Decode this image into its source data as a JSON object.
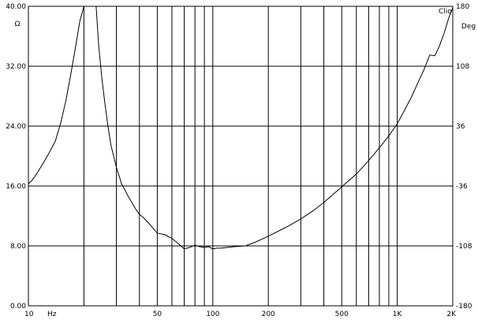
{
  "chart_data": {
    "type": "line",
    "brand": "Clio",
    "x_scale": "log",
    "xlim": [
      10,
      2000
    ],
    "ylim_left": [
      0,
      40
    ],
    "ylim_right": [
      -180,
      180
    ],
    "y_unit_left": "Ω",
    "y_unit_right": "Deg",
    "x_unit": "Hz",
    "grid": true,
    "x_tick_labels": [
      {
        "value": 10,
        "label": "10"
      },
      {
        "value": 50,
        "label": "50"
      },
      {
        "value": 100,
        "label": "100"
      },
      {
        "value": 200,
        "label": "200"
      },
      {
        "value": 500,
        "label": "500"
      },
      {
        "value": 1000,
        "label": "1K"
      },
      {
        "value": 2000,
        "label": "2K"
      }
    ],
    "x_grid_values": [
      20,
      30,
      40,
      50,
      60,
      70,
      80,
      90,
      100,
      200,
      300,
      400,
      500,
      600,
      700,
      800,
      900,
      1000
    ],
    "y_left_ticks": [
      {
        "value": 0,
        "label": "0.00"
      },
      {
        "value": 8,
        "label": "8.00"
      },
      {
        "value": 16,
        "label": "16.00"
      },
      {
        "value": 24,
        "label": "24.00"
      },
      {
        "value": 32,
        "label": "32.00"
      },
      {
        "value": 40,
        "label": "40.00"
      }
    ],
    "y_right_ticks": [
      {
        "value": -180,
        "label": "-180"
      },
      {
        "value": -108,
        "label": "-108"
      },
      {
        "value": -36,
        "label": "-36"
      },
      {
        "value": 36,
        "label": "36"
      },
      {
        "value": 108,
        "label": "108"
      },
      {
        "value": 180,
        "label": "180"
      }
    ],
    "series": [
      {
        "x": [
          10,
          10.5,
          11,
          12,
          13,
          14,
          15,
          16,
          17,
          18,
          19,
          20,
          20.2,
          23.3,
          24,
          25,
          26,
          27,
          28,
          30,
          32,
          35,
          38,
          40,
          42,
          45,
          48,
          50,
          55,
          60,
          65,
          70,
          75,
          80,
          85,
          90,
          95,
          100,
          105,
          110,
          120,
          130,
          150,
          170,
          200,
          250,
          300,
          350,
          400,
          450,
          500,
          600,
          700,
          800,
          900,
          1000,
          1100,
          1200,
          1300,
          1400,
          1500,
          1600,
          1700,
          1800,
          1900,
          2000
        ],
        "y": [
          16.3,
          16.8,
          17.5,
          19.0,
          20.5,
          22.0,
          24.5,
          27.5,
          31.0,
          34.5,
          38.0,
          40.0,
          null,
          40.0,
          35.0,
          30.5,
          27.0,
          24.0,
          21.5,
          18.5,
          16.3,
          14.5,
          13.0,
          12.2,
          11.8,
          11.0,
          10.2,
          9.7,
          9.5,
          9.0,
          8.3,
          7.6,
          7.8,
          8.1,
          7.9,
          7.8,
          7.9,
          7.6,
          7.7,
          7.7,
          7.8,
          7.9,
          8.0,
          8.5,
          9.3,
          10.5,
          11.6,
          12.7,
          13.8,
          14.9,
          15.9,
          17.6,
          19.4,
          21.1,
          22.7,
          24.3,
          26.2,
          28.0,
          29.9,
          31.6,
          33.5,
          33.4,
          34.8,
          36.5,
          38.4,
          39.8
        ]
      }
    ]
  }
}
